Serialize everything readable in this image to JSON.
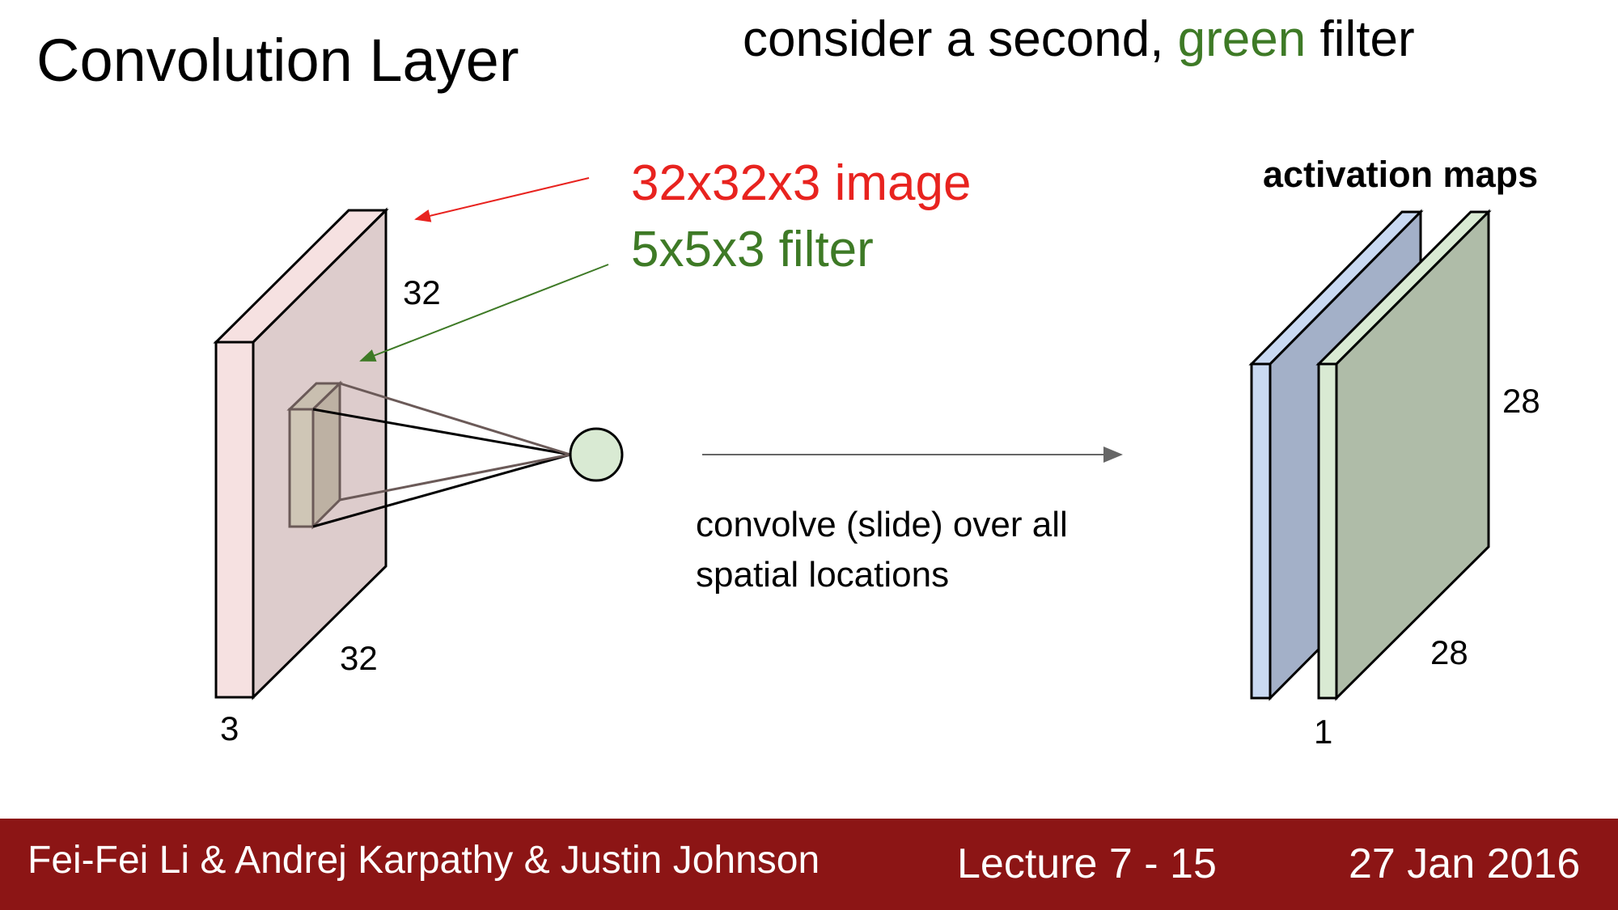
{
  "title": "Convolution Layer",
  "subtitle": {
    "before": "consider a second, ",
    "highlight": "green",
    "after": " filter"
  },
  "labels": {
    "image": "32x32x3 image",
    "filter": "5x5x3 filter",
    "input_height": "32",
    "input_width": "32",
    "input_depth": "3",
    "activation_maps": "activation maps",
    "output_height": "28",
    "output_width": "28",
    "output_depth": "1",
    "convolve_line1": "convolve (slide) over all",
    "convolve_line2": "spatial locations"
  },
  "footer": {
    "authors": "Fei-Fei Li & Andrej Karpathy & Justin Johnson",
    "lecture": "Lecture 7 - 15",
    "date": "27 Jan 2016"
  },
  "colors": {
    "red_label": "#e8231f",
    "green_label": "#3e7a26",
    "footer_bg": "#8c1515",
    "input_front": "#f6e1e1",
    "input_face": "#ddcccc",
    "map_blue_front": "#c9d9f2",
    "map_blue_face": "#a3b0c8",
    "map_green_front": "#d9ead3",
    "map_green_face": "#afbca8",
    "neuron": "#d9ead3"
  }
}
